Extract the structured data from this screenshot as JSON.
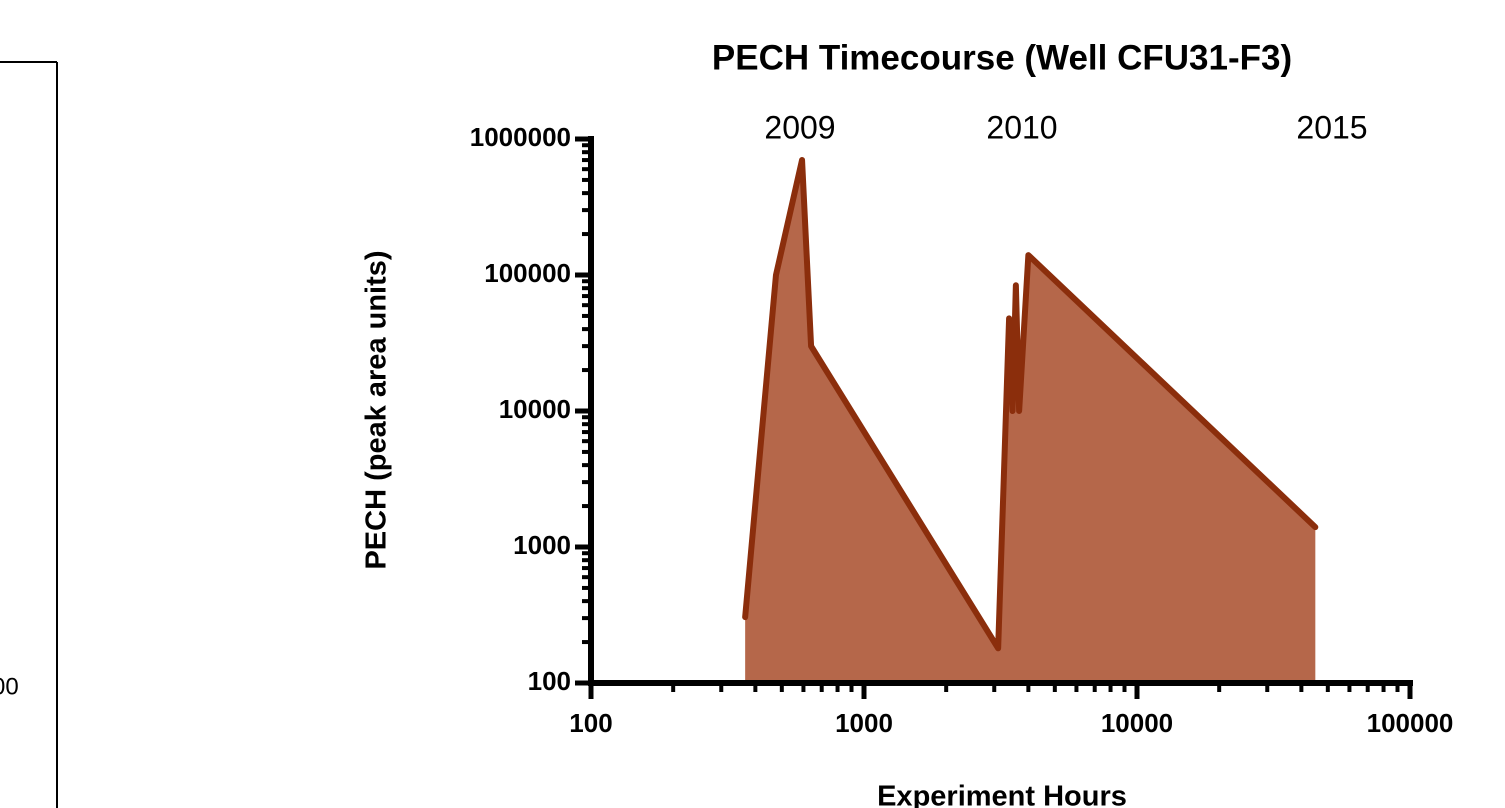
{
  "side_panel": {
    "label": "00"
  },
  "chart_data": {
    "type": "area",
    "title": "PECH Timecourse (Well CFU31-F3)",
    "x_label": "Experiment Hours",
    "y_label": "PECH (peak area units)",
    "annotations": [
      "2009",
      "2010",
      "2015"
    ],
    "x": [
      367,
      476,
      593,
      640,
      3100,
      3400,
      3500,
      3600,
      3700,
      4000,
      45000
    ],
    "series": [
      {
        "name": "PECH",
        "color": "#8b2e0c",
        "fill": "#b5674a",
        "values": [
          305,
          100000,
          700000,
          30000,
          180,
          48000,
          10000,
          84000,
          10000,
          140000,
          1400
        ]
      }
    ],
    "x_log": true,
    "y_log": true,
    "xlim": [
      100,
      100000
    ],
    "ylim": [
      100,
      1000000
    ],
    "xticks": [
      100,
      1000,
      10000,
      100000
    ],
    "yticks": [
      100,
      1000,
      10000,
      100000,
      1000000
    ]
  }
}
